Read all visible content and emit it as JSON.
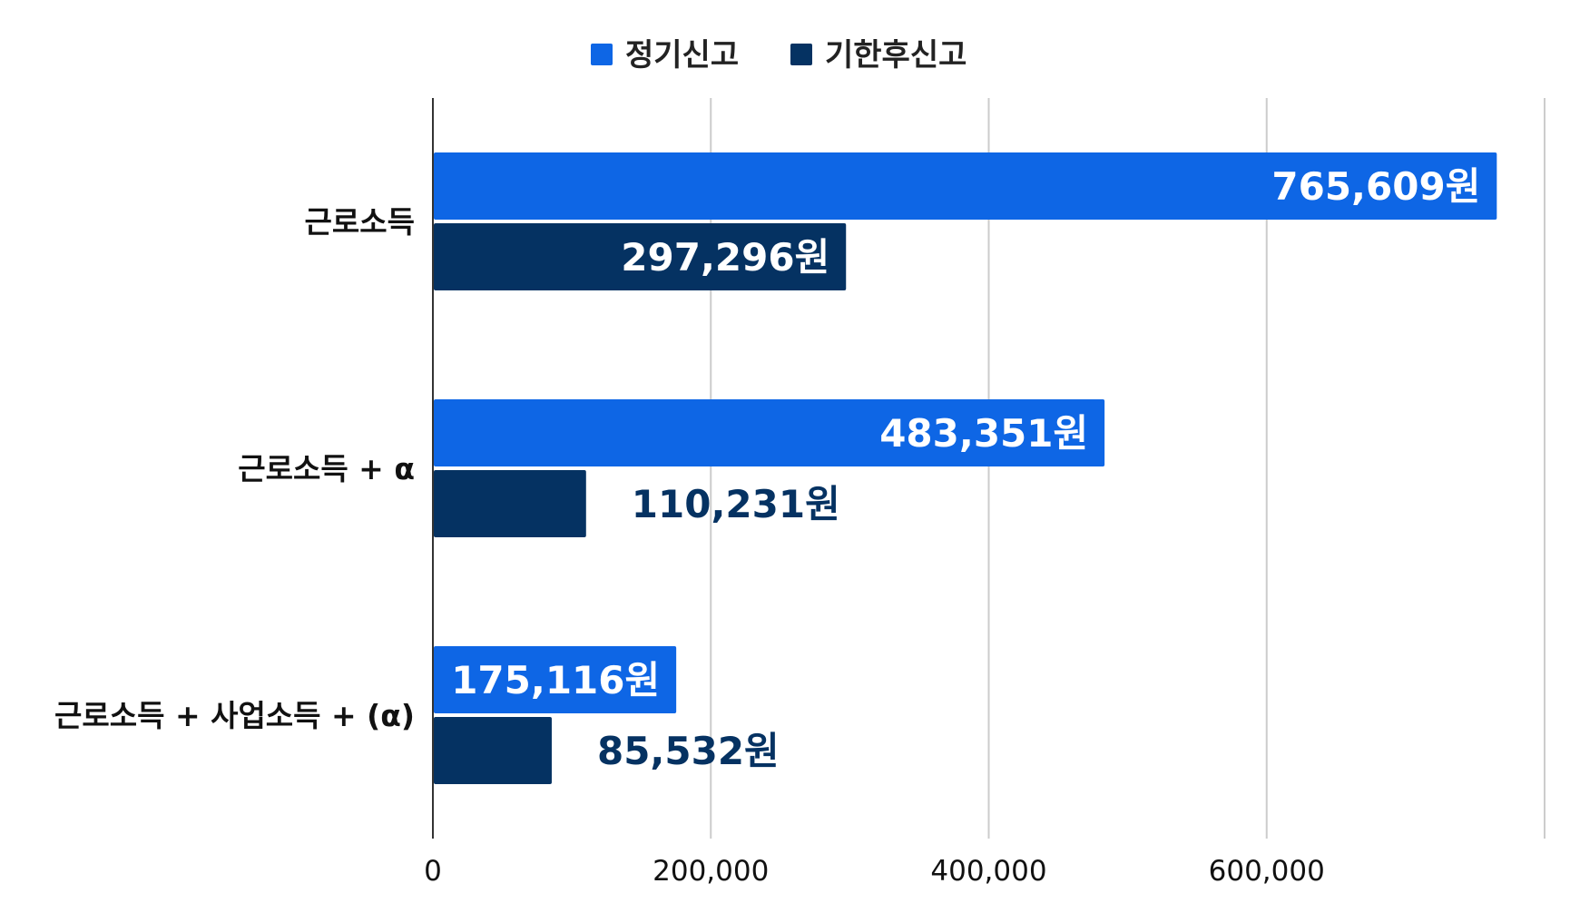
{
  "chart_data": {
    "type": "bar",
    "orientation": "horizontal",
    "categories": [
      "근로소득",
      "근로소득 + α",
      "근로소득 + 사업소득 + (α)"
    ],
    "series": [
      {
        "name": "정기신고",
        "color": "#0e66e5",
        "values": [
          765609,
          483351,
          175116
        ],
        "labels": [
          "765,609원",
          "483,351원",
          "175,116원"
        ]
      },
      {
        "name": "기한후신고",
        "color": "#053262",
        "values": [
          297296,
          110231,
          85532
        ],
        "labels": [
          "297,296원",
          "110,231원",
          "85,532원"
        ]
      }
    ],
    "x_ticks": [
      "0",
      "200,000",
      "400,000",
      "600,000"
    ],
    "xlim": [
      0,
      800000
    ],
    "grid": true,
    "legend_position": "top-center"
  }
}
